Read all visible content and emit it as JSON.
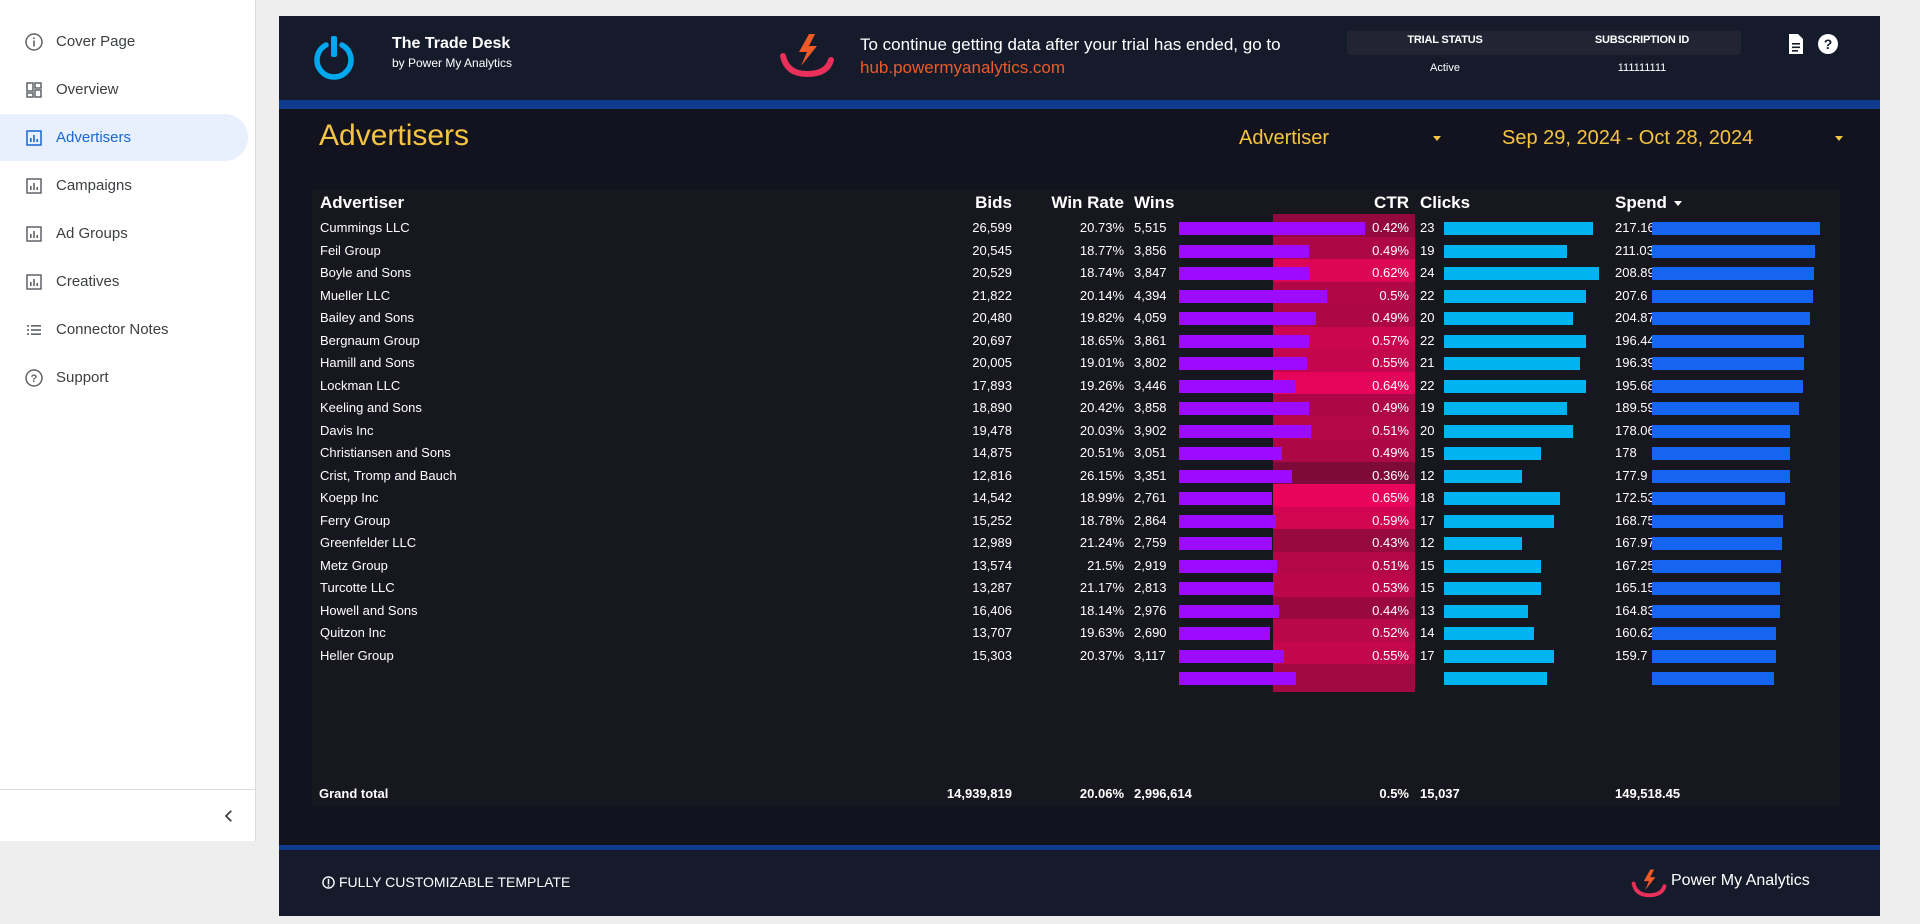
{
  "sidebar": {
    "items": [
      {
        "label": "Cover Page",
        "icon": "info-icon",
        "active": false
      },
      {
        "label": "Overview",
        "icon": "dashboard-icon",
        "active": false
      },
      {
        "label": "Advertisers",
        "icon": "report-icon",
        "active": true
      },
      {
        "label": "Campaigns",
        "icon": "report-icon",
        "active": false
      },
      {
        "label": "Ad Groups",
        "icon": "report-icon",
        "active": false
      },
      {
        "label": "Creatives",
        "icon": "report-icon",
        "active": false
      },
      {
        "label": "Connector Notes",
        "icon": "list-icon",
        "active": false
      },
      {
        "label": "Support",
        "icon": "help-icon",
        "active": false
      }
    ],
    "collapse_icon": "chevron-left-icon"
  },
  "header": {
    "brand_title": "The Trade Desk",
    "brand_sub": "by Power My Analytics",
    "trial_message": "To continue getting data after your trial has ended, go to",
    "trial_link": "hub.powermyanalytics.com",
    "trial_status_label": "TRIAL STATUS",
    "trial_status_value": "Active",
    "subscription_label": "SUBSCRIPTION ID",
    "subscription_value": "111111111"
  },
  "page": {
    "title": "Advertisers",
    "advertiser_filter": "Advertiser",
    "date_range": "Sep 29, 2024 - Oct 28, 2024"
  },
  "table": {
    "headers": {
      "advertiser": "Advertiser",
      "bids": "Bids",
      "win_rate": "Win Rate",
      "wins": "Wins",
      "ctr": "CTR",
      "clicks": "Clicks",
      "spend": "Spend"
    },
    "sort_icon": "sort-desc-icon",
    "rows": [
      {
        "advertiser": "Cummings LLC",
        "bids": "26,599",
        "win_rate": "20.73%",
        "wins": "5,515",
        "wins_n": 5515,
        "ctr": "0.42%",
        "ctr_n": 0.42,
        "clicks": "23",
        "clicks_n": 23,
        "spend": "217.16",
        "spend_n": 217.16
      },
      {
        "advertiser": "Feil Group",
        "bids": "20,545",
        "win_rate": "18.77%",
        "wins": "3,856",
        "wins_n": 3856,
        "ctr": "0.49%",
        "ctr_n": 0.49,
        "clicks": "19",
        "clicks_n": 19,
        "spend": "211.03",
        "spend_n": 211.03
      },
      {
        "advertiser": "Boyle and Sons",
        "bids": "20,529",
        "win_rate": "18.74%",
        "wins": "3,847",
        "wins_n": 3847,
        "ctr": "0.62%",
        "ctr_n": 0.62,
        "clicks": "24",
        "clicks_n": 24,
        "spend": "208.89",
        "spend_n": 208.89
      },
      {
        "advertiser": "Mueller LLC",
        "bids": "21,822",
        "win_rate": "20.14%",
        "wins": "4,394",
        "wins_n": 4394,
        "ctr": "0.5%",
        "ctr_n": 0.5,
        "clicks": "22",
        "clicks_n": 22,
        "spend": "207.6",
        "spend_n": 207.6
      },
      {
        "advertiser": "Bailey and Sons",
        "bids": "20,480",
        "win_rate": "19.82%",
        "wins": "4,059",
        "wins_n": 4059,
        "ctr": "0.49%",
        "ctr_n": 0.49,
        "clicks": "20",
        "clicks_n": 20,
        "spend": "204.87",
        "spend_n": 204.87
      },
      {
        "advertiser": "Bergnaum Group",
        "bids": "20,697",
        "win_rate": "18.65%",
        "wins": "3,861",
        "wins_n": 3861,
        "ctr": "0.57%",
        "ctr_n": 0.57,
        "clicks": "22",
        "clicks_n": 22,
        "spend": "196.44",
        "spend_n": 196.44
      },
      {
        "advertiser": "Hamill and Sons",
        "bids": "20,005",
        "win_rate": "19.01%",
        "wins": "3,802",
        "wins_n": 3802,
        "ctr": "0.55%",
        "ctr_n": 0.55,
        "clicks": "21",
        "clicks_n": 21,
        "spend": "196.39",
        "spend_n": 196.39
      },
      {
        "advertiser": "Lockman LLC",
        "bids": "17,893",
        "win_rate": "19.26%",
        "wins": "3,446",
        "wins_n": 3446,
        "ctr": "0.64%",
        "ctr_n": 0.64,
        "clicks": "22",
        "clicks_n": 22,
        "spend": "195.68",
        "spend_n": 195.68
      },
      {
        "advertiser": "Keeling and Sons",
        "bids": "18,890",
        "win_rate": "20.42%",
        "wins": "3,858",
        "wins_n": 3858,
        "ctr": "0.49%",
        "ctr_n": 0.49,
        "clicks": "19",
        "clicks_n": 19,
        "spend": "189.59",
        "spend_n": 189.59
      },
      {
        "advertiser": "Davis Inc",
        "bids": "19,478",
        "win_rate": "20.03%",
        "wins": "3,902",
        "wins_n": 3902,
        "ctr": "0.51%",
        "ctr_n": 0.51,
        "clicks": "20",
        "clicks_n": 20,
        "spend": "178.06",
        "spend_n": 178.06
      },
      {
        "advertiser": "Christiansen and Sons",
        "bids": "14,875",
        "win_rate": "20.51%",
        "wins": "3,051",
        "wins_n": 3051,
        "ctr": "0.49%",
        "ctr_n": 0.49,
        "clicks": "15",
        "clicks_n": 15,
        "spend": "178",
        "spend_n": 178
      },
      {
        "advertiser": "Crist, Tromp and Bauch",
        "bids": "12,816",
        "win_rate": "26.15%",
        "wins": "3,351",
        "wins_n": 3351,
        "ctr": "0.36%",
        "ctr_n": 0.36,
        "clicks": "12",
        "clicks_n": 12,
        "spend": "177.9",
        "spend_n": 177.9
      },
      {
        "advertiser": "Koepp Inc",
        "bids": "14,542",
        "win_rate": "18.99%",
        "wins": "2,761",
        "wins_n": 2761,
        "ctr": "0.65%",
        "ctr_n": 0.65,
        "clicks": "18",
        "clicks_n": 18,
        "spend": "172.53",
        "spend_n": 172.53
      },
      {
        "advertiser": "Ferry Group",
        "bids": "15,252",
        "win_rate": "18.78%",
        "wins": "2,864",
        "wins_n": 2864,
        "ctr": "0.59%",
        "ctr_n": 0.59,
        "clicks": "17",
        "clicks_n": 17,
        "spend": "168.75",
        "spend_n": 168.75
      },
      {
        "advertiser": "Greenfelder LLC",
        "bids": "12,989",
        "win_rate": "21.24%",
        "wins": "2,759",
        "wins_n": 2759,
        "ctr": "0.43%",
        "ctr_n": 0.43,
        "clicks": "12",
        "clicks_n": 12,
        "spend": "167.97",
        "spend_n": 167.97
      },
      {
        "advertiser": "Metz Group",
        "bids": "13,574",
        "win_rate": "21.5%",
        "wins": "2,919",
        "wins_n": 2919,
        "ctr": "0.51%",
        "ctr_n": 0.51,
        "clicks": "15",
        "clicks_n": 15,
        "spend": "167.25",
        "spend_n": 167.25
      },
      {
        "advertiser": "Turcotte LLC",
        "bids": "13,287",
        "win_rate": "21.17%",
        "wins": "2,813",
        "wins_n": 2813,
        "ctr": "0.53%",
        "ctr_n": 0.53,
        "clicks": "15",
        "clicks_n": 15,
        "spend": "165.15",
        "spend_n": 165.15
      },
      {
        "advertiser": "Howell and Sons",
        "bids": "16,406",
        "win_rate": "18.14%",
        "wins": "2,976",
        "wins_n": 2976,
        "ctr": "0.44%",
        "ctr_n": 0.44,
        "clicks": "13",
        "clicks_n": 13,
        "spend": "164.83",
        "spend_n": 164.83
      },
      {
        "advertiser": "Quitzon Inc",
        "bids": "13,707",
        "win_rate": "19.63%",
        "wins": "2,690",
        "wins_n": 2690,
        "ctr": "0.52%",
        "ctr_n": 0.52,
        "clicks": "14",
        "clicks_n": 14,
        "spend": "160.62",
        "spend_n": 160.62
      },
      {
        "advertiser": "Heller Group",
        "bids": "15,303",
        "win_rate": "20.37%",
        "wins": "3,117",
        "wins_n": 3117,
        "ctr": "0.55%",
        "ctr_n": 0.55,
        "clicks": "17",
        "clicks_n": 17,
        "spend": "159.7",
        "spend_n": 159.7
      },
      {
        "advertiser": "",
        "bids": "",
        "win_rate": "",
        "wins": "",
        "wins_n": 3470,
        "ctr": "",
        "ctr_n": 0.46,
        "clicks": "",
        "clicks_n": 16,
        "spend": "",
        "spend_n": 157.5
      }
    ],
    "totals": {
      "label": "Grand total",
      "bids": "14,939,819",
      "win_rate": "20.06%",
      "wins": "2,996,614",
      "ctr": "0.5%",
      "clicks": "15,037",
      "spend": "149,518.45"
    },
    "colors": {
      "wins_bar": "#9d0bff",
      "clicks_bar": "#00b4f0",
      "spend_bar": "#1565f0",
      "ctr_low": "#7d0a38",
      "ctr_high": "#e8045a"
    }
  },
  "footer": {
    "note": "FULLY CUSTOMIZABLE TEMPLATE",
    "note_icon": "info-circle-icon",
    "brand": "Power My Analytics"
  }
}
